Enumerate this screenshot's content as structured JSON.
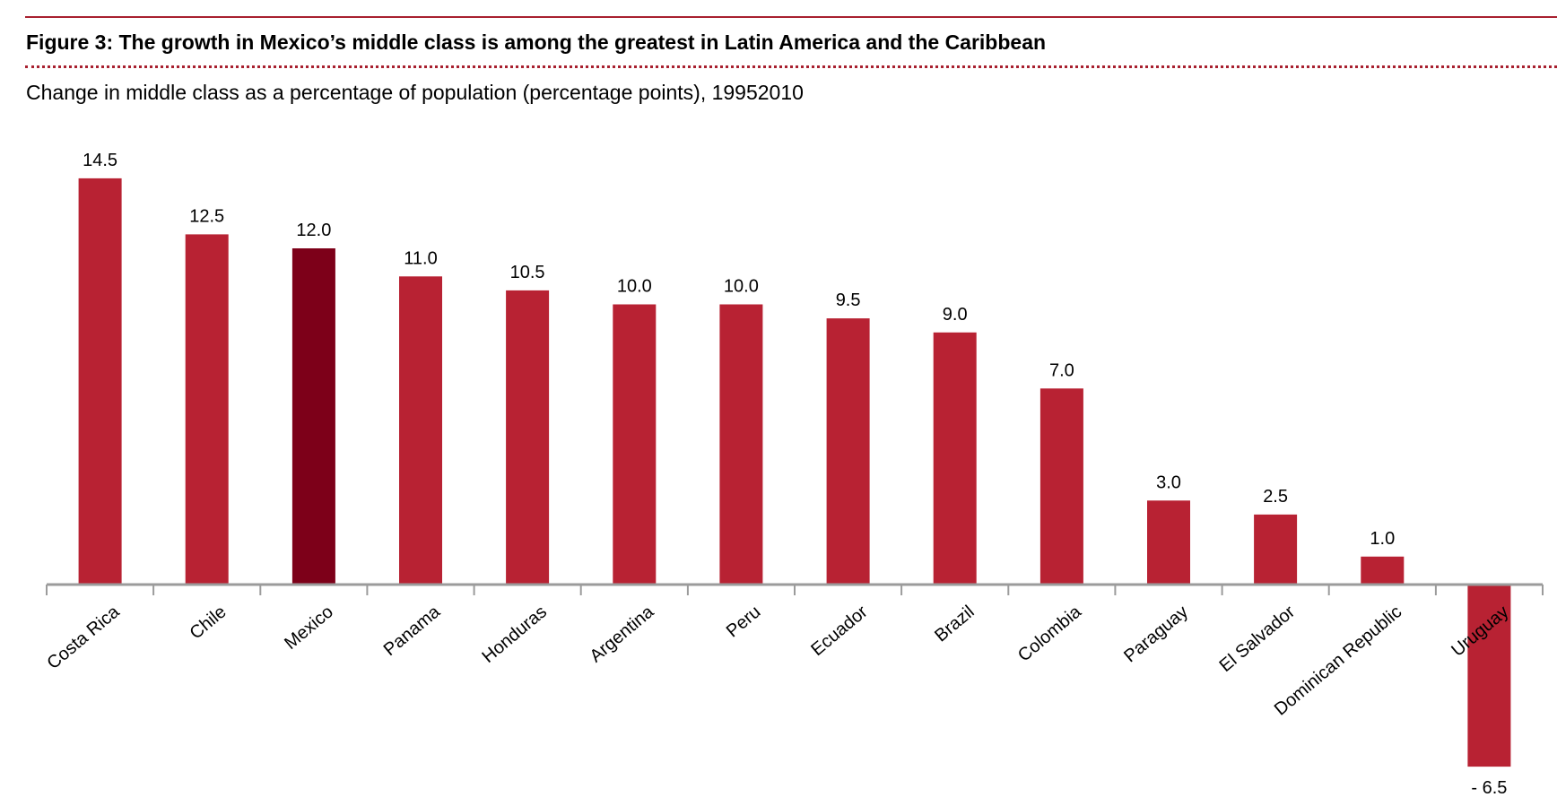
{
  "figure": {
    "title": "Figure 3: The growth in Mexico’s middle class is among the greatest in Latin America and the Caribbean",
    "subtitle": "Change in middle class as a percentage of population (percentage points), 19952010"
  },
  "chart_data": {
    "type": "bar",
    "categories": [
      "Costa Rica",
      "Chile",
      "Mexico",
      "Panama",
      "Honduras",
      "Argentina",
      "Peru",
      "Ecuador",
      "Brazil",
      "Colombia",
      "Paraguay",
      "El Salvador",
      "Dominican Republic",
      "Uruguay"
    ],
    "values": [
      14.5,
      12.5,
      12.0,
      11.0,
      10.5,
      10.0,
      10.0,
      9.5,
      9.0,
      7.0,
      3.0,
      2.5,
      1.0,
      -6.5
    ],
    "data_labels": [
      "14.5",
      "12.5",
      "12.0",
      "11.0",
      "10.5",
      "10.0",
      "10.0",
      "9.5",
      "9.0",
      "7.0",
      "3.0",
      "2.5",
      "1.0",
      "- 6.5"
    ],
    "ylim": [
      -6.5,
      14.5
    ],
    "grid": false,
    "legend": "none",
    "colors": {
      "bar": "#b82233",
      "highlight": "#7d0019",
      "axis": "#9b9b9b"
    },
    "highlight_category": "Mexico"
  }
}
